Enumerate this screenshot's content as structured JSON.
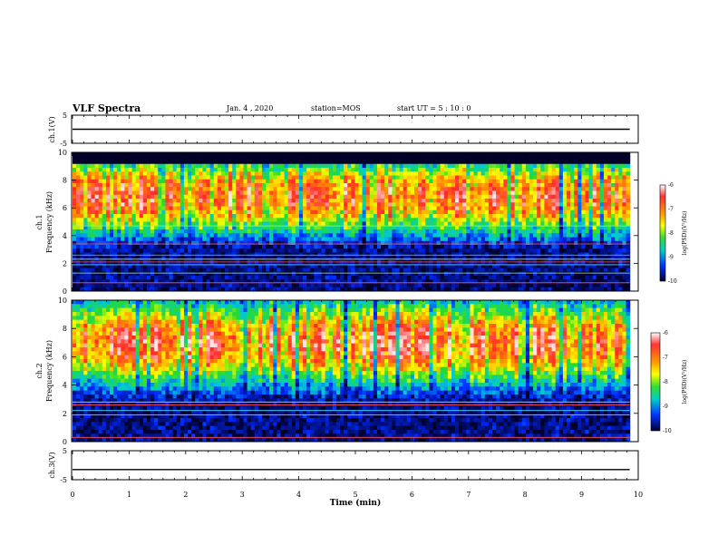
{
  "header": {
    "title": "VLF Spectra",
    "date": "Jan. 4 , 2020",
    "station": "station=MOS",
    "start": "start UT = 5 : 10 : 0"
  },
  "chart_data": {
    "type": "heatmap",
    "xlabel": "Time (min)",
    "xlim": [
      0,
      10
    ],
    "x_ticks": [
      "0",
      "1",
      "2",
      "3",
      "4",
      "5",
      "6",
      "7",
      "8",
      "9",
      "10"
    ],
    "panels": [
      {
        "name": "ch.1(V)",
        "type": "line",
        "ylabel": "ch.1(V)",
        "ylim": [
          -5,
          5
        ],
        "y_ticks": [
          "5",
          "-5"
        ],
        "level": 0,
        "data_end_min": 9.85
      },
      {
        "name": "ch.1 spectrogram",
        "type": "heatmap",
        "ylabel_line1": "ch.1",
        "ylabel_line2": "Frequency (kHz)",
        "ylim": [
          0,
          10
        ],
        "y_ticks": [
          "0",
          "2",
          "4",
          "6",
          "8",
          "10"
        ],
        "colorbar": {
          "label": "log(PSD)(V²/Hz)",
          "range": [
            -10,
            -6
          ],
          "ticks": [
            "-6",
            "-7",
            "-8",
            "-9",
            "-10"
          ]
        },
        "data_end_min": 9.85,
        "features": {
          "noise_band_kHz": [
            5,
            8.7
          ],
          "peak_log_psd": -7,
          "cutoff_kHz": 9.2,
          "lines_kHz": [
            0.6,
            1.3,
            1.9,
            2.1,
            2.3,
            2.6,
            3.4,
            4.7
          ]
        }
      },
      {
        "name": "ch.2 spectrogram",
        "type": "heatmap",
        "ylabel_line1": "ch.2",
        "ylabel_line2": "Frequency (kHz)",
        "ylim": [
          0,
          10
        ],
        "y_ticks": [
          "0",
          "2",
          "4",
          "6",
          "8",
          "10"
        ],
        "colorbar": {
          "label": "log(PSD)(V²/Hz)",
          "range": [
            -10,
            -6
          ],
          "ticks": [
            "-6",
            "-7",
            "-8",
            "-9",
            "-10"
          ]
        },
        "data_end_min": 9.85,
        "features": {
          "noise_band_kHz": [
            5,
            9
          ],
          "peak_log_psd": -7,
          "lines_kHz": [
            0.3,
            1.9,
            2.2,
            2.6,
            2.8
          ]
        }
      },
      {
        "name": "ch.3(V)",
        "type": "line",
        "ylabel": "ch.3(V)",
        "ylim": [
          -5,
          5
        ],
        "y_ticks": [
          "5",
          "-5"
        ],
        "level": -1.5,
        "data_end_min": 9.85
      }
    ]
  }
}
